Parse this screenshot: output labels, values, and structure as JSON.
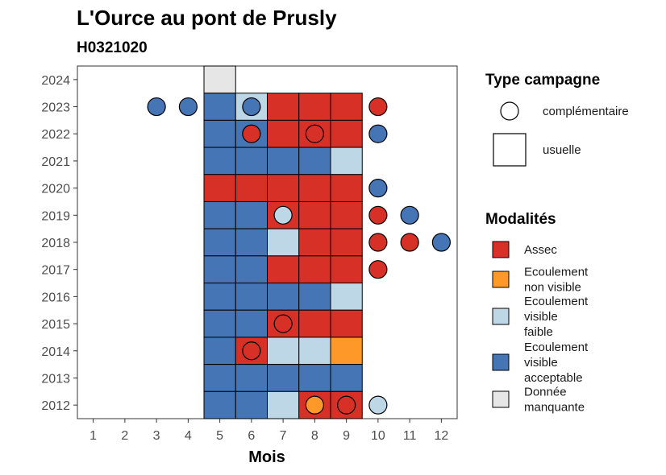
{
  "title": "L'Ource au pont de Prusly",
  "subtitle": "H0321020",
  "chart_data": {
    "type": "heatmap",
    "title": "L'Ource au pont de Prusly",
    "subtitle": "H0321020",
    "xlabel": "Mois",
    "ylabel": "",
    "x_ticks": [
      "1",
      "2",
      "3",
      "4",
      "5",
      "6",
      "7",
      "8",
      "9",
      "10",
      "11",
      "12"
    ],
    "y_ticks": [
      "2012",
      "2013",
      "2014",
      "2015",
      "2016",
      "2017",
      "2018",
      "2019",
      "2020",
      "2021",
      "2022",
      "2023",
      "2024"
    ],
    "xlim": [
      0.5,
      12.5
    ],
    "ylim": [
      2011.5,
      2024.5
    ],
    "colors": {
      "Assec": "#d73027",
      "Ecoulement non visible": "#fe9929",
      "Ecoulement visible faible": "#bdd7e7",
      "Ecoulement visible acceptable": "#4575b4",
      "Donnée manquante": "#e6e6e6"
    },
    "usuelle": [
      {
        "year": 2024,
        "month": 5,
        "mod": "Donnée manquante"
      },
      {
        "year": 2023,
        "month": 5,
        "mod": "Ecoulement visible acceptable"
      },
      {
        "year": 2023,
        "month": 6,
        "mod": "Ecoulement visible faible"
      },
      {
        "year": 2023,
        "month": 7,
        "mod": "Assec"
      },
      {
        "year": 2023,
        "month": 8,
        "mod": "Assec"
      },
      {
        "year": 2023,
        "month": 9,
        "mod": "Assec"
      },
      {
        "year": 2022,
        "month": 5,
        "mod": "Ecoulement visible acceptable"
      },
      {
        "year": 2022,
        "month": 6,
        "mod": "Ecoulement visible acceptable"
      },
      {
        "year": 2022,
        "month": 7,
        "mod": "Assec"
      },
      {
        "year": 2022,
        "month": 8,
        "mod": "Assec"
      },
      {
        "year": 2022,
        "month": 9,
        "mod": "Assec"
      },
      {
        "year": 2021,
        "month": 5,
        "mod": "Ecoulement visible acceptable"
      },
      {
        "year": 2021,
        "month": 6,
        "mod": "Ecoulement visible acceptable"
      },
      {
        "year": 2021,
        "month": 7,
        "mod": "Ecoulement visible acceptable"
      },
      {
        "year": 2021,
        "month": 8,
        "mod": "Ecoulement visible acceptable"
      },
      {
        "year": 2021,
        "month": 9,
        "mod": "Ecoulement visible faible"
      },
      {
        "year": 2020,
        "month": 5,
        "mod": "Assec"
      },
      {
        "year": 2020,
        "month": 6,
        "mod": "Assec"
      },
      {
        "year": 2020,
        "month": 7,
        "mod": "Assec"
      },
      {
        "year": 2020,
        "month": 8,
        "mod": "Assec"
      },
      {
        "year": 2020,
        "month": 9,
        "mod": "Assec"
      },
      {
        "year": 2019,
        "month": 5,
        "mod": "Ecoulement visible acceptable"
      },
      {
        "year": 2019,
        "month": 6,
        "mod": "Ecoulement visible acceptable"
      },
      {
        "year": 2019,
        "month": 7,
        "mod": "Assec"
      },
      {
        "year": 2019,
        "month": 8,
        "mod": "Assec"
      },
      {
        "year": 2019,
        "month": 9,
        "mod": "Assec"
      },
      {
        "year": 2018,
        "month": 5,
        "mod": "Ecoulement visible acceptable"
      },
      {
        "year": 2018,
        "month": 6,
        "mod": "Ecoulement visible acceptable"
      },
      {
        "year": 2018,
        "month": 7,
        "mod": "Ecoulement visible faible"
      },
      {
        "year": 2018,
        "month": 8,
        "mod": "Assec"
      },
      {
        "year": 2018,
        "month": 9,
        "mod": "Assec"
      },
      {
        "year": 2017,
        "month": 5,
        "mod": "Ecoulement visible acceptable"
      },
      {
        "year": 2017,
        "month": 6,
        "mod": "Ecoulement visible acceptable"
      },
      {
        "year": 2017,
        "month": 7,
        "mod": "Assec"
      },
      {
        "year": 2017,
        "month": 8,
        "mod": "Assec"
      },
      {
        "year": 2017,
        "month": 9,
        "mod": "Assec"
      },
      {
        "year": 2016,
        "month": 5,
        "mod": "Ecoulement visible acceptable"
      },
      {
        "year": 2016,
        "month": 6,
        "mod": "Ecoulement visible acceptable"
      },
      {
        "year": 2016,
        "month": 7,
        "mod": "Ecoulement visible acceptable"
      },
      {
        "year": 2016,
        "month": 8,
        "mod": "Ecoulement visible acceptable"
      },
      {
        "year": 2016,
        "month": 9,
        "mod": "Ecoulement visible faible"
      },
      {
        "year": 2015,
        "month": 5,
        "mod": "Ecoulement visible acceptable"
      },
      {
        "year": 2015,
        "month": 6,
        "mod": "Ecoulement visible acceptable"
      },
      {
        "year": 2015,
        "month": 7,
        "mod": "Assec"
      },
      {
        "year": 2015,
        "month": 8,
        "mod": "Assec"
      },
      {
        "year": 2015,
        "month": 9,
        "mod": "Assec"
      },
      {
        "year": 2014,
        "month": 5,
        "mod": "Ecoulement visible acceptable"
      },
      {
        "year": 2014,
        "month": 6,
        "mod": "Assec"
      },
      {
        "year": 2014,
        "month": 7,
        "mod": "Ecoulement visible faible"
      },
      {
        "year": 2014,
        "month": 8,
        "mod": "Ecoulement visible faible"
      },
      {
        "year": 2014,
        "month": 9,
        "mod": "Ecoulement non visible"
      },
      {
        "year": 2013,
        "month": 5,
        "mod": "Ecoulement visible acceptable"
      },
      {
        "year": 2013,
        "month": 6,
        "mod": "Ecoulement visible acceptable"
      },
      {
        "year": 2013,
        "month": 7,
        "mod": "Ecoulement visible acceptable"
      },
      {
        "year": 2013,
        "month": 8,
        "mod": "Ecoulement visible acceptable"
      },
      {
        "year": 2013,
        "month": 9,
        "mod": "Ecoulement visible acceptable"
      },
      {
        "year": 2012,
        "month": 5,
        "mod": "Ecoulement visible acceptable"
      },
      {
        "year": 2012,
        "month": 6,
        "mod": "Ecoulement visible acceptable"
      },
      {
        "year": 2012,
        "month": 7,
        "mod": "Ecoulement visible faible"
      },
      {
        "year": 2012,
        "month": 8,
        "mod": "Assec"
      },
      {
        "year": 2012,
        "month": 9,
        "mod": "Assec"
      }
    ],
    "complementaire": [
      {
        "year": 2023,
        "month": 3,
        "mod": "Ecoulement visible acceptable"
      },
      {
        "year": 2023,
        "month": 4,
        "mod": "Ecoulement visible acceptable"
      },
      {
        "year": 2023,
        "month": 6,
        "mod": "Ecoulement visible acceptable"
      },
      {
        "year": 2023,
        "month": 10,
        "mod": "Assec"
      },
      {
        "year": 2022,
        "month": 6,
        "mod": "Assec"
      },
      {
        "year": 2022,
        "month": 8,
        "mod": "Assec"
      },
      {
        "year": 2022,
        "month": 10,
        "mod": "Ecoulement visible acceptable"
      },
      {
        "year": 2020,
        "month": 10,
        "mod": "Ecoulement visible acceptable"
      },
      {
        "year": 2019,
        "month": 7,
        "mod": "Ecoulement visible faible"
      },
      {
        "year": 2019,
        "month": 10,
        "mod": "Assec"
      },
      {
        "year": 2019,
        "month": 11,
        "mod": "Ecoulement visible acceptable"
      },
      {
        "year": 2018,
        "month": 10,
        "mod": "Assec"
      },
      {
        "year": 2018,
        "month": 11,
        "mod": "Assec"
      },
      {
        "year": 2018,
        "month": 12,
        "mod": "Ecoulement visible acceptable"
      },
      {
        "year": 2017,
        "month": 10,
        "mod": "Assec"
      },
      {
        "year": 2015,
        "month": 7,
        "mod": "Assec"
      },
      {
        "year": 2014,
        "month": 6,
        "mod": "Assec"
      },
      {
        "year": 2012,
        "month": 8,
        "mod": "Ecoulement non visible"
      },
      {
        "year": 2012,
        "month": 9,
        "mod": "Assec"
      },
      {
        "year": 2012,
        "month": 10,
        "mod": "Ecoulement visible faible"
      }
    ],
    "legend_shape": {
      "title": "Type campagne",
      "items": [
        {
          "label": "complémentaire",
          "shape": "circle"
        },
        {
          "label": "usuelle",
          "shape": "square"
        }
      ]
    },
    "legend_color": {
      "title": "Modalités",
      "items": [
        {
          "key": "Assec",
          "lines": [
            "Assec"
          ]
        },
        {
          "key": "Ecoulement non visible",
          "lines": [
            "Ecoulement",
            "non visible"
          ]
        },
        {
          "key": "Ecoulement visible faible",
          "lines": [
            "Ecoulement",
            "visible",
            "faible"
          ]
        },
        {
          "key": "Ecoulement visible acceptable",
          "lines": [
            "Ecoulement",
            "visible",
            "acceptable"
          ]
        },
        {
          "key": "Donnée manquante",
          "lines": [
            "Donnée",
            "manquante"
          ]
        }
      ]
    },
    "grid": false,
    "legend_position": "right"
  }
}
